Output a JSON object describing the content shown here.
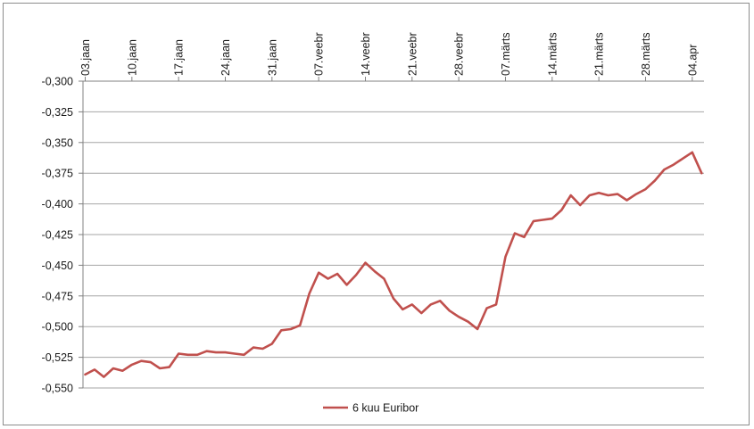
{
  "chart_data": {
    "type": "line",
    "title": "",
    "xlabel": "",
    "ylabel": "",
    "x_ticks": [
      "03.jaan",
      "10.jaan",
      "17.jaan",
      "24.jaan",
      "31.jaan",
      "07.veebr",
      "14.veebr",
      "21.veebr",
      "28.veebr",
      "07.märts",
      "14.märts",
      "21.märts",
      "28.märts",
      "04.apr"
    ],
    "y_ticks": [
      "-0,300",
      "-0,325",
      "-0,350",
      "-0,375",
      "-0,400",
      "-0,425",
      "-0,450",
      "-0,475",
      "-0,500",
      "-0,525",
      "-0,550"
    ],
    "ylim": [
      -0.55,
      -0.3
    ],
    "grid": true,
    "legend_position": "bottom",
    "series": [
      {
        "name": "6 kuu Euribor",
        "color": "#c0504d",
        "x": [
          "03.jaan",
          "04.jaan",
          "05.jaan",
          "06.jaan",
          "07.jaan",
          "10.jaan",
          "11.jaan",
          "12.jaan",
          "13.jaan",
          "14.jaan",
          "17.jaan",
          "18.jaan",
          "19.jaan",
          "20.jaan",
          "21.jaan",
          "24.jaan",
          "25.jaan",
          "26.jaan",
          "27.jaan",
          "28.jaan",
          "31.jaan",
          "01.veebr",
          "02.veebr",
          "03.veebr",
          "04.veebr",
          "07.veebr",
          "08.veebr",
          "09.veebr",
          "10.veebr",
          "11.veebr",
          "14.veebr",
          "15.veebr",
          "16.veebr",
          "17.veebr",
          "18.veebr",
          "21.veebr",
          "22.veebr",
          "23.veebr",
          "24.veebr",
          "25.veebr",
          "28.veebr",
          "01.märts",
          "02.märts",
          "03.märts",
          "04.märts",
          "07.märts",
          "08.märts",
          "09.märts",
          "10.märts",
          "11.märts",
          "14.märts",
          "15.märts",
          "16.märts",
          "17.märts",
          "18.märts",
          "21.märts",
          "22.märts",
          "23.märts",
          "24.märts",
          "25.märts",
          "28.märts",
          "29.märts",
          "30.märts",
          "31.märts",
          "01.apr",
          "04.apr",
          "05.apr"
        ],
        "values": [
          -0.539,
          -0.535,
          -0.541,
          -0.534,
          -0.536,
          -0.531,
          -0.528,
          -0.529,
          -0.534,
          -0.533,
          -0.522,
          -0.523,
          -0.523,
          -0.52,
          -0.521,
          -0.521,
          -0.522,
          -0.523,
          -0.517,
          -0.518,
          -0.514,
          -0.503,
          -0.502,
          -0.499,
          -0.473,
          -0.456,
          -0.461,
          -0.457,
          -0.466,
          -0.458,
          -0.448,
          -0.455,
          -0.461,
          -0.477,
          -0.486,
          -0.482,
          -0.489,
          -0.482,
          -0.479,
          -0.487,
          -0.492,
          -0.496,
          -0.502,
          -0.485,
          -0.482,
          -0.443,
          -0.424,
          -0.427,
          -0.414,
          -0.413,
          -0.412,
          -0.405,
          -0.393,
          -0.401,
          -0.393,
          -0.391,
          -0.393,
          -0.392,
          -0.397,
          -0.392,
          -0.388,
          -0.381,
          -0.372,
          -0.368,
          -0.363,
          -0.358,
          -0.375
        ]
      }
    ]
  }
}
